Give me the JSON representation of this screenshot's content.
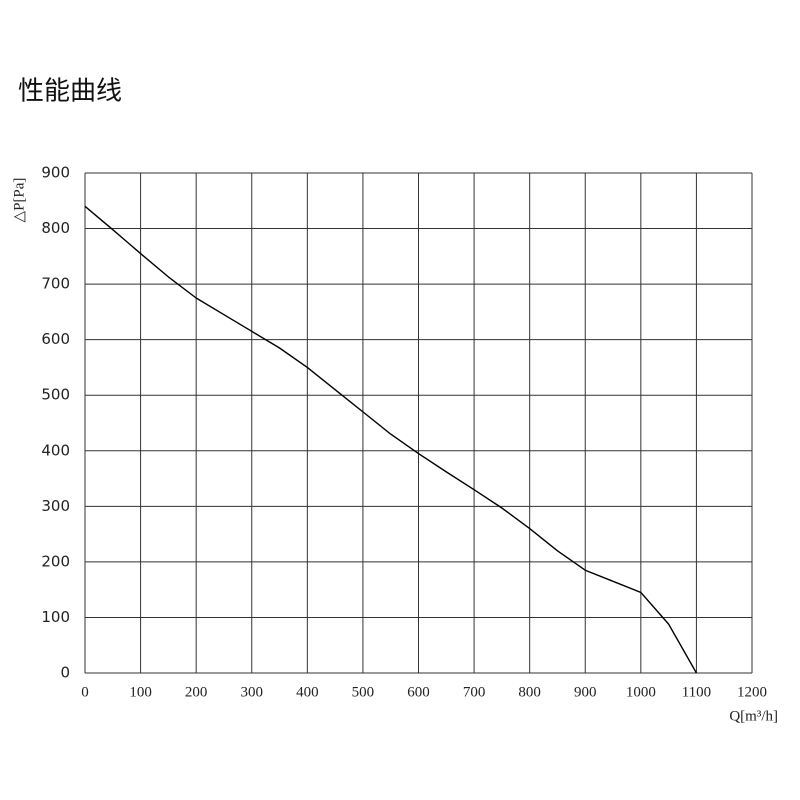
{
  "chart_data": {
    "type": "line",
    "title": "性能曲线",
    "x_label": "Q[m³/h]",
    "y_label": "△P[Pa]",
    "x": [
      0,
      50,
      100,
      150,
      200,
      250,
      300,
      350,
      400,
      450,
      500,
      550,
      600,
      650,
      700,
      750,
      800,
      850,
      900,
      950,
      1000,
      1050,
      1100
    ],
    "series": [
      {
        "color": "#000000",
        "values": [
          840,
          798,
          755,
          713,
          675,
          645,
          615,
          585,
          550,
          510,
          470,
          430,
          395,
          362,
          330,
          297,
          260,
          220,
          185,
          165,
          145,
          88,
          0
        ]
      }
    ],
    "xlim": [
      0,
      1200
    ],
    "xticks": [
      0,
      100,
      200,
      300,
      400,
      500,
      600,
      700,
      800,
      900,
      1000,
      1100,
      1200
    ],
    "ylim": [
      0,
      900
    ],
    "yticks": [
      0,
      100,
      200,
      300,
      400,
      500,
      600,
      700,
      800,
      900
    ],
    "grid": true
  }
}
